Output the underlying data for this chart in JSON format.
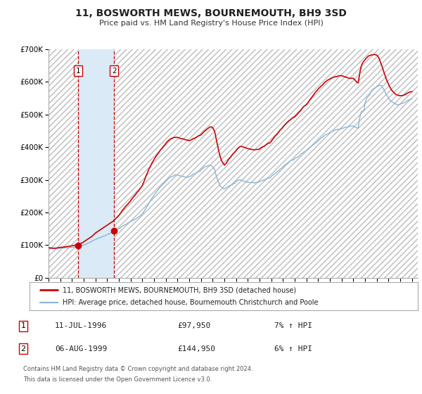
{
  "title": "11, BOSWORTH MEWS, BOURNEMOUTH, BH9 3SD",
  "subtitle": "Price paid vs. HM Land Registry's House Price Index (HPI)",
  "ylim": [
    0,
    700000
  ],
  "xlim": [
    1994.0,
    2025.5
  ],
  "yticks": [
    0,
    100000,
    200000,
    300000,
    400000,
    500000,
    600000,
    700000
  ],
  "ytick_labels": [
    "£0",
    "£100K",
    "£200K",
    "£300K",
    "£400K",
    "£500K",
    "£600K",
    "£700K"
  ],
  "transaction1_date": 1996.53,
  "transaction1_price": 97950,
  "transaction2_date": 1999.59,
  "transaction2_price": 144950,
  "hpi_line_color": "#8ab4d8",
  "price_line_color": "#cc0000",
  "transaction_dot_color": "#cc0000",
  "shade_color": "#daeaf7",
  "vline_color": "#cc0000",
  "background_color": "#ffffff",
  "plot_bg_color": "#e8e8e8",
  "grid_color": "#ffffff",
  "hatch_color": "#cccccc",
  "legend_line1": "11, BOSWORTH MEWS, BOURNEMOUTH, BH9 3SD (detached house)",
  "legend_line2": "HPI: Average price, detached house, Bournemouth Christchurch and Poole",
  "table_row1": [
    "1",
    "11-JUL-1996",
    "£97,950",
    "7% ↑ HPI"
  ],
  "table_row2": [
    "2",
    "06-AUG-1999",
    "£144,950",
    "6% ↑ HPI"
  ],
  "footnote1": "Contains HM Land Registry data © Crown copyright and database right 2024.",
  "footnote2": "This data is licensed under the Open Government Licence v3.0.",
  "hpi_data_x": [
    1994.0,
    1994.08,
    1994.17,
    1994.25,
    1994.33,
    1994.42,
    1994.5,
    1994.58,
    1994.67,
    1994.75,
    1994.83,
    1994.92,
    1995.0,
    1995.08,
    1995.17,
    1995.25,
    1995.33,
    1995.42,
    1995.5,
    1995.58,
    1995.67,
    1995.75,
    1995.83,
    1995.92,
    1996.0,
    1996.08,
    1996.17,
    1996.25,
    1996.33,
    1996.42,
    1996.5,
    1996.58,
    1996.67,
    1996.75,
    1996.83,
    1996.92,
    1997.0,
    1997.08,
    1997.17,
    1997.25,
    1997.33,
    1997.42,
    1997.5,
    1997.58,
    1997.67,
    1997.75,
    1997.83,
    1997.92,
    1998.0,
    1998.08,
    1998.17,
    1998.25,
    1998.33,
    1998.42,
    1998.5,
    1998.58,
    1998.67,
    1998.75,
    1998.83,
    1998.92,
    1999.0,
    1999.08,
    1999.17,
    1999.25,
    1999.33,
    1999.42,
    1999.5,
    1999.58,
    1999.67,
    1999.75,
    1999.83,
    1999.92,
    2000.0,
    2000.08,
    2000.17,
    2000.25,
    2000.33,
    2000.42,
    2000.5,
    2000.58,
    2000.67,
    2000.75,
    2000.83,
    2000.92,
    2001.0,
    2001.08,
    2001.17,
    2001.25,
    2001.33,
    2001.42,
    2001.5,
    2001.58,
    2001.67,
    2001.75,
    2001.83,
    2001.92,
    2002.0,
    2002.08,
    2002.17,
    2002.25,
    2002.33,
    2002.42,
    2002.5,
    2002.58,
    2002.67,
    2002.75,
    2002.83,
    2002.92,
    2003.0,
    2003.08,
    2003.17,
    2003.25,
    2003.33,
    2003.42,
    2003.5,
    2003.58,
    2003.67,
    2003.75,
    2003.83,
    2003.92,
    2004.0,
    2004.08,
    2004.17,
    2004.25,
    2004.33,
    2004.42,
    2004.5,
    2004.58,
    2004.67,
    2004.75,
    2004.83,
    2004.92,
    2005.0,
    2005.08,
    2005.17,
    2005.25,
    2005.33,
    2005.42,
    2005.5,
    2005.58,
    2005.67,
    2005.75,
    2005.83,
    2005.92,
    2006.0,
    2006.08,
    2006.17,
    2006.25,
    2006.33,
    2006.42,
    2006.5,
    2006.58,
    2006.67,
    2006.75,
    2006.83,
    2006.92,
    2007.0,
    2007.08,
    2007.17,
    2007.25,
    2007.33,
    2007.42,
    2007.5,
    2007.58,
    2007.67,
    2007.75,
    2007.83,
    2007.92,
    2008.0,
    2008.08,
    2008.17,
    2008.25,
    2008.33,
    2008.42,
    2008.5,
    2008.58,
    2008.67,
    2008.75,
    2008.83,
    2008.92,
    2009.0,
    2009.08,
    2009.17,
    2009.25,
    2009.33,
    2009.42,
    2009.5,
    2009.58,
    2009.67,
    2009.75,
    2009.83,
    2009.92,
    2010.0,
    2010.08,
    2010.17,
    2010.25,
    2010.33,
    2010.42,
    2010.5,
    2010.58,
    2010.67,
    2010.75,
    2010.83,
    2010.92,
    2011.0,
    2011.08,
    2011.17,
    2011.25,
    2011.33,
    2011.42,
    2011.5,
    2011.58,
    2011.67,
    2011.75,
    2011.83,
    2011.92,
    2012.0,
    2012.08,
    2012.17,
    2012.25,
    2012.33,
    2012.42,
    2012.5,
    2012.58,
    2012.67,
    2012.75,
    2012.83,
    2012.92,
    2013.0,
    2013.08,
    2013.17,
    2013.25,
    2013.33,
    2013.42,
    2013.5,
    2013.58,
    2013.67,
    2013.75,
    2013.83,
    2013.92,
    2014.0,
    2014.08,
    2014.17,
    2014.25,
    2014.33,
    2014.42,
    2014.5,
    2014.58,
    2014.67,
    2014.75,
    2014.83,
    2014.92,
    2015.0,
    2015.08,
    2015.17,
    2015.25,
    2015.33,
    2015.42,
    2015.5,
    2015.58,
    2015.67,
    2015.75,
    2015.83,
    2015.92,
    2016.0,
    2016.08,
    2016.17,
    2016.25,
    2016.33,
    2016.42,
    2016.5,
    2016.58,
    2016.67,
    2016.75,
    2016.83,
    2016.92,
    2017.0,
    2017.08,
    2017.17,
    2017.25,
    2017.33,
    2017.42,
    2017.5,
    2017.58,
    2017.67,
    2017.75,
    2017.83,
    2017.92,
    2018.0,
    2018.08,
    2018.17,
    2018.25,
    2018.33,
    2018.42,
    2018.5,
    2018.58,
    2018.67,
    2018.75,
    2018.83,
    2018.92,
    2019.0,
    2019.08,
    2019.17,
    2019.25,
    2019.33,
    2019.42,
    2019.5,
    2019.58,
    2019.67,
    2019.75,
    2019.83,
    2019.92,
    2020.0,
    2020.08,
    2020.17,
    2020.25,
    2020.33,
    2020.42,
    2020.5,
    2020.58,
    2020.67,
    2020.75,
    2020.83,
    2020.92,
    2021.0,
    2021.08,
    2021.17,
    2021.25,
    2021.33,
    2021.42,
    2021.5,
    2021.58,
    2021.67,
    2021.75,
    2021.83,
    2021.92,
    2022.0,
    2022.08,
    2022.17,
    2022.25,
    2022.33,
    2022.42,
    2022.5,
    2022.58,
    2022.67,
    2022.75,
    2022.83,
    2022.92,
    2023.0,
    2023.08,
    2023.17,
    2023.25,
    2023.33,
    2023.42,
    2023.5,
    2023.58,
    2023.67,
    2023.75,
    2023.83,
    2023.92,
    2024.0,
    2024.08,
    2024.17,
    2024.25,
    2024.33,
    2024.42,
    2024.5,
    2024.58,
    2024.67,
    2024.75,
    2024.83,
    2024.92,
    2025.0
  ],
  "hpi_data_y": [
    90000,
    90200,
    90100,
    90000,
    89800,
    89600,
    89500,
    89600,
    89800,
    90000,
    90200,
    90400,
    90500,
    90700,
    90900,
    91000,
    91200,
    91400,
    91500,
    91700,
    91900,
    92000,
    92300,
    92600,
    93000,
    93500,
    93800,
    94000,
    94300,
    94700,
    95000,
    95500,
    96000,
    97000,
    98000,
    99000,
    100000,
    101000,
    102500,
    104000,
    105500,
    107000,
    108000,
    109500,
    111000,
    113000,
    115000,
    116000,
    117000,
    118500,
    120000,
    121000,
    122000,
    123500,
    125000,
    126000,
    127000,
    128000,
    129000,
    130500,
    132000,
    133500,
    134500,
    136000,
    137500,
    138500,
    140000,
    141500,
    143000,
    145000,
    147000,
    148500,
    150000,
    152000,
    154500,
    157000,
    159000,
    160500,
    162000,
    163500,
    165000,
    167000,
    169000,
    170500,
    172000,
    174000,
    176000,
    177000,
    178500,
    180000,
    182000,
    184000,
    186000,
    188000,
    190000,
    193000,
    196000,
    200000,
    205000,
    210000,
    215000,
    219000,
    225000,
    230000,
    235000,
    240000,
    244000,
    248000,
    253000,
    257000,
    261000,
    265000,
    269000,
    273000,
    277000,
    280000,
    283000,
    287000,
    289000,
    291000,
    295000,
    298000,
    301000,
    305000,
    307000,
    308000,
    310000,
    311000,
    312000,
    315000,
    315000,
    315000,
    315000,
    314000,
    313000,
    312000,
    311000,
    311000,
    310000,
    309000,
    309000,
    308000,
    308000,
    308000,
    310000,
    311000,
    312000,
    315000,
    317000,
    318000,
    320000,
    321000,
    322000,
    325000,
    326000,
    326000,
    330000,
    333000,
    335000,
    338000,
    340000,
    341000,
    342000,
    343000,
    344000,
    345000,
    344000,
    343000,
    340000,
    336000,
    332000,
    320000,
    310000,
    300000,
    295000,
    286000,
    280000,
    278000,
    276000,
    274000,
    272000,
    274000,
    276000,
    278000,
    280000,
    281000,
    283000,
    284000,
    285000,
    288000,
    289000,
    290000,
    295000,
    297000,
    298000,
    300000,
    300000,
    299000,
    298000,
    297000,
    296000,
    295000,
    294000,
    293000,
    293000,
    292000,
    292000,
    292000,
    292000,
    292000,
    290000,
    291000,
    292000,
    292000,
    292000,
    292000,
    295000,
    296000,
    297000,
    298000,
    299000,
    300000,
    302000,
    303000,
    304000,
    305000,
    306000,
    306000,
    310000,
    313000,
    315000,
    318000,
    320000,
    322000,
    325000,
    327000,
    329000,
    333000,
    335000,
    337000,
    340000,
    343000,
    346000,
    348000,
    350000,
    352000,
    355000,
    357000,
    359000,
    360000,
    361000,
    361000,
    365000,
    367000,
    368000,
    370000,
    372000,
    374000,
    378000,
    380000,
    382000,
    385000,
    386000,
    387000,
    390000,
    393000,
    395000,
    398000,
    400000,
    402000,
    405000,
    407000,
    409000,
    412000,
    414000,
    415000,
    420000,
    423000,
    425000,
    428000,
    430000,
    432000,
    435000,
    437000,
    439000,
    440000,
    441000,
    442000,
    445000,
    447000,
    448000,
    450000,
    451000,
    452000,
    453000,
    454000,
    455000,
    455000,
    455000,
    455000,
    457000,
    458000,
    459000,
    460000,
    461000,
    461000,
    462000,
    462000,
    463000,
    465000,
    465000,
    465000,
    465000,
    463000,
    461000,
    460000,
    459000,
    459000,
    480000,
    495000,
    508000,
    510000,
    512000,
    515000,
    535000,
    545000,
    552000,
    555000,
    558000,
    562000,
    570000,
    574000,
    577000,
    580000,
    581000,
    582000,
    585000,
    587000,
    588000,
    590000,
    589000,
    588000,
    583000,
    578000,
    573000,
    565000,
    560000,
    556000,
    550000,
    546000,
    543000,
    540000,
    538000,
    536000,
    535000,
    533000,
    531000,
    530000,
    530000,
    530000,
    532000,
    533000,
    534000,
    535000,
    536000,
    537000,
    540000,
    542000,
    544000,
    545000,
    546000,
    547000,
    548000
  ],
  "price_data_x": [
    1994.0,
    1994.08,
    1994.17,
    1994.25,
    1994.33,
    1994.42,
    1994.5,
    1994.58,
    1994.67,
    1994.75,
    1994.83,
    1994.92,
    1995.0,
    1995.08,
    1995.17,
    1995.25,
    1995.33,
    1995.42,
    1995.5,
    1995.58,
    1995.67,
    1995.75,
    1995.83,
    1995.92,
    1996.0,
    1996.08,
    1996.17,
    1996.25,
    1996.33,
    1996.42,
    1996.5,
    1996.58,
    1996.67,
    1996.75,
    1996.83,
    1996.92,
    1997.0,
    1997.08,
    1997.17,
    1997.25,
    1997.33,
    1997.42,
    1997.5,
    1997.58,
    1997.67,
    1997.75,
    1997.83,
    1997.92,
    1998.0,
    1998.08,
    1998.17,
    1998.25,
    1998.33,
    1998.42,
    1998.5,
    1998.58,
    1998.67,
    1998.75,
    1998.83,
    1998.92,
    1999.0,
    1999.08,
    1999.17,
    1999.25,
    1999.33,
    1999.42,
    1999.5,
    1999.58,
    1999.67,
    1999.75,
    1999.83,
    1999.92,
    2000.0,
    2000.08,
    2000.17,
    2000.25,
    2000.33,
    2000.42,
    2000.5,
    2000.58,
    2000.67,
    2000.75,
    2000.83,
    2000.92,
    2001.0,
    2001.08,
    2001.17,
    2001.25,
    2001.33,
    2001.42,
    2001.5,
    2001.58,
    2001.67,
    2001.75,
    2001.83,
    2001.92,
    2002.0,
    2002.08,
    2002.17,
    2002.25,
    2002.33,
    2002.42,
    2002.5,
    2002.58,
    2002.67,
    2002.75,
    2002.83,
    2002.92,
    2003.0,
    2003.08,
    2003.17,
    2003.25,
    2003.33,
    2003.42,
    2003.5,
    2003.58,
    2003.67,
    2003.75,
    2003.83,
    2003.92,
    2004.0,
    2004.08,
    2004.17,
    2004.25,
    2004.33,
    2004.42,
    2004.5,
    2004.58,
    2004.67,
    2004.75,
    2004.83,
    2004.92,
    2005.0,
    2005.08,
    2005.17,
    2005.25,
    2005.33,
    2005.42,
    2005.5,
    2005.58,
    2005.67,
    2005.75,
    2005.83,
    2005.92,
    2006.0,
    2006.08,
    2006.17,
    2006.25,
    2006.33,
    2006.42,
    2006.5,
    2006.58,
    2006.67,
    2006.75,
    2006.83,
    2006.92,
    2007.0,
    2007.08,
    2007.17,
    2007.25,
    2007.33,
    2007.42,
    2007.5,
    2007.58,
    2007.67,
    2007.75,
    2007.83,
    2007.92,
    2008.0,
    2008.08,
    2008.17,
    2008.25,
    2008.33,
    2008.42,
    2008.5,
    2008.58,
    2008.67,
    2008.75,
    2008.83,
    2008.92,
    2009.0,
    2009.08,
    2009.17,
    2009.25,
    2009.33,
    2009.42,
    2009.5,
    2009.58,
    2009.67,
    2009.75,
    2009.83,
    2009.92,
    2010.0,
    2010.08,
    2010.17,
    2010.25,
    2010.33,
    2010.42,
    2010.5,
    2010.58,
    2010.67,
    2010.75,
    2010.83,
    2010.92,
    2011.0,
    2011.08,
    2011.17,
    2011.25,
    2011.33,
    2011.42,
    2011.5,
    2011.58,
    2011.67,
    2011.75,
    2011.83,
    2011.92,
    2012.0,
    2012.08,
    2012.17,
    2012.25,
    2012.33,
    2012.42,
    2012.5,
    2012.58,
    2012.67,
    2012.75,
    2012.83,
    2012.92,
    2013.0,
    2013.08,
    2013.17,
    2013.25,
    2013.33,
    2013.42,
    2013.5,
    2013.58,
    2013.67,
    2013.75,
    2013.83,
    2013.92,
    2014.0,
    2014.08,
    2014.17,
    2014.25,
    2014.33,
    2014.42,
    2014.5,
    2014.58,
    2014.67,
    2014.75,
    2014.83,
    2014.92,
    2015.0,
    2015.08,
    2015.17,
    2015.25,
    2015.33,
    2015.42,
    2015.5,
    2015.58,
    2015.67,
    2015.75,
    2015.83,
    2015.92,
    2016.0,
    2016.08,
    2016.17,
    2016.25,
    2016.33,
    2016.42,
    2016.5,
    2016.58,
    2016.67,
    2016.75,
    2016.83,
    2016.92,
    2017.0,
    2017.08,
    2017.17,
    2017.25,
    2017.33,
    2017.42,
    2017.5,
    2017.58,
    2017.67,
    2017.75,
    2017.83,
    2017.92,
    2018.0,
    2018.08,
    2018.17,
    2018.25,
    2018.33,
    2018.42,
    2018.5,
    2018.58,
    2018.67,
    2018.75,
    2018.83,
    2018.92,
    2019.0,
    2019.08,
    2019.17,
    2019.25,
    2019.33,
    2019.42,
    2019.5,
    2019.58,
    2019.67,
    2019.75,
    2019.83,
    2019.92,
    2020.0,
    2020.08,
    2020.17,
    2020.25,
    2020.33,
    2020.42,
    2020.5,
    2020.58,
    2020.67,
    2020.75,
    2020.83,
    2020.92,
    2021.0,
    2021.08,
    2021.17,
    2021.25,
    2021.33,
    2021.42,
    2021.5,
    2021.58,
    2021.67,
    2021.75,
    2021.83,
    2021.92,
    2022.0,
    2022.08,
    2022.17,
    2022.25,
    2022.33,
    2022.42,
    2022.5,
    2022.58,
    2022.67,
    2022.75,
    2022.83,
    2022.92,
    2023.0,
    2023.08,
    2023.17,
    2023.25,
    2023.33,
    2023.42,
    2023.5,
    2023.58,
    2023.67,
    2023.75,
    2023.83,
    2023.92,
    2024.0,
    2024.08,
    2024.17,
    2024.25,
    2024.33,
    2024.42,
    2024.5,
    2024.58,
    2024.67,
    2024.75,
    2024.83,
    2024.92,
    2025.0
  ],
  "price_data_y": [
    92000,
    91800,
    91500,
    91000,
    90800,
    90600,
    90500,
    90700,
    91000,
    91500,
    92000,
    92500,
    93000,
    93300,
    93600,
    94000,
    94400,
    94700,
    95000,
    95500,
    96000,
    96500,
    97000,
    97500,
    98000,
    98500,
    99000,
    100000,
    100500,
    101000,
    102000,
    103000,
    104000,
    105000,
    106500,
    108000,
    110000,
    112000,
    114000,
    116000,
    118000,
    120000,
    122000,
    124000,
    126000,
    128000,
    131000,
    134000,
    137000,
    139000,
    141000,
    143000,
    145000,
    147000,
    149000,
    151000,
    153000,
    155000,
    157000,
    159000,
    161000,
    163000,
    165000,
    167000,
    169000,
    171000,
    173000,
    176000,
    179000,
    182000,
    185000,
    188000,
    191000,
    195000,
    199000,
    204000,
    208000,
    211000,
    215000,
    219000,
    222000,
    225000,
    229000,
    232000,
    236000,
    240000,
    244000,
    248000,
    251000,
    255000,
    259000,
    263000,
    266000,
    270000,
    274000,
    278000,
    283000,
    290000,
    297000,
    305000,
    313000,
    320000,
    327000,
    334000,
    340000,
    346000,
    352000,
    357000,
    362000,
    367000,
    372000,
    376000,
    380000,
    384000,
    389000,
    393000,
    396000,
    400000,
    404000,
    407000,
    411000,
    415000,
    418000,
    421000,
    423000,
    425000,
    427000,
    428000,
    429000,
    430000,
    430000,
    430000,
    430000,
    429000,
    428000,
    427000,
    426000,
    426000,
    425000,
    424000,
    423000,
    422000,
    422000,
    421000,
    420000,
    421000,
    422000,
    424000,
    426000,
    427000,
    428000,
    430000,
    432000,
    434000,
    435000,
    436000,
    438000,
    441000,
    444000,
    447000,
    450000,
    452000,
    455000,
    457000,
    459000,
    462000,
    462000,
    462000,
    460000,
    455000,
    448000,
    435000,
    420000,
    406000,
    392000,
    379000,
    368000,
    360000,
    354000,
    350000,
    345000,
    348000,
    351000,
    356000,
    361000,
    365000,
    368000,
    372000,
    376000,
    380000,
    383000,
    386000,
    390000,
    394000,
    397000,
    400000,
    402000,
    402000,
    402000,
    401000,
    400000,
    399000,
    398000,
    397000,
    396000,
    395000,
    394000,
    394000,
    393000,
    393000,
    392000,
    392000,
    393000,
    393000,
    393000,
    393000,
    395000,
    397000,
    399000,
    401000,
    402000,
    403000,
    406000,
    408000,
    410000,
    412000,
    413000,
    414000,
    418000,
    422000,
    426000,
    430000,
    434000,
    437000,
    440000,
    444000,
    448000,
    452000,
    455000,
    458000,
    462000,
    466000,
    469000,
    472000,
    475000,
    478000,
    481000,
    483000,
    485000,
    488000,
    490000,
    491000,
    493000,
    496000,
    499000,
    502000,
    506000,
    509000,
    512000,
    516000,
    520000,
    524000,
    526000,
    528000,
    530000,
    534000,
    538000,
    543000,
    547000,
    551000,
    555000,
    559000,
    563000,
    568000,
    571000,
    574000,
    578000,
    581000,
    584000,
    587000,
    589000,
    592000,
    596000,
    599000,
    601000,
    604000,
    606000,
    607000,
    609000,
    611000,
    612000,
    614000,
    615000,
    615000,
    616000,
    616000,
    617000,
    619000,
    619000,
    619000,
    619000,
    618000,
    617000,
    616000,
    615000,
    614000,
    613000,
    612000,
    611000,
    611000,
    611000,
    611000,
    611000,
    608000,
    605000,
    601000,
    598000,
    597000,
    615000,
    633000,
    647000,
    655000,
    660000,
    664000,
    668000,
    672000,
    675000,
    678000,
    680000,
    681000,
    682000,
    683000,
    683000,
    684000,
    684000,
    683000,
    682000,
    679000,
    674000,
    667000,
    659000,
    651000,
    642000,
    633000,
    624000,
    615000,
    607000,
    600000,
    593000,
    587000,
    581000,
    576000,
    572000,
    569000,
    566000,
    563000,
    561000,
    560000,
    559000,
    558000,
    558000,
    558000,
    558000,
    559000,
    560000,
    561000,
    563000,
    565000,
    566000,
    568000,
    569000,
    570000,
    570000
  ]
}
